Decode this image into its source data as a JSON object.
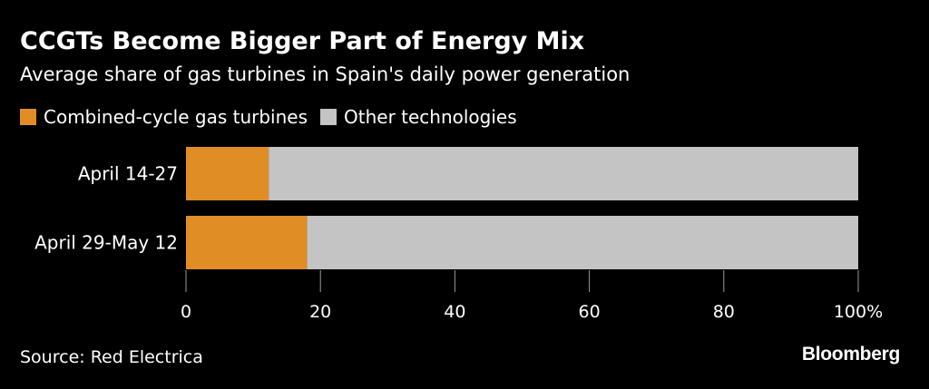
{
  "header": {
    "title": "CCGTs Become Bigger Part of Energy Mix",
    "subtitle": "Average share of gas turbines in Spain's daily power generation"
  },
  "footer": {
    "source": "Source: Red Electrica",
    "brand": "Bloomberg"
  },
  "colors": {
    "background": "#000000",
    "ccgt": "#e08d26",
    "other": "#c4c4c4",
    "text": "#ffffff"
  },
  "chart_data": {
    "type": "bar",
    "orientation": "horizontal",
    "stacked": true,
    "title": "CCGTs Become Bigger Part of Energy Mix",
    "subtitle": "Average share of gas turbines in Spain's daily power generation",
    "categories": [
      "April 14-27",
      "April 29-May 12"
    ],
    "series": [
      {
        "name": "Combined-cycle gas turbines",
        "values": [
          12.3,
          18.0
        ],
        "color": "#e08d26"
      },
      {
        "name": "Other technologies",
        "values": [
          87.7,
          82.0
        ],
        "color": "#c4c4c4"
      }
    ],
    "xlim": [
      0,
      100
    ],
    "ticks": [
      {
        "value": 0,
        "label": "0"
      },
      {
        "value": 20,
        "label": "20"
      },
      {
        "value": 40,
        "label": "40"
      },
      {
        "value": 60,
        "label": "60"
      },
      {
        "value": 80,
        "label": "80"
      },
      {
        "value": 100,
        "label": "100%"
      }
    ],
    "legend_position": "top-left",
    "grid": false
  }
}
